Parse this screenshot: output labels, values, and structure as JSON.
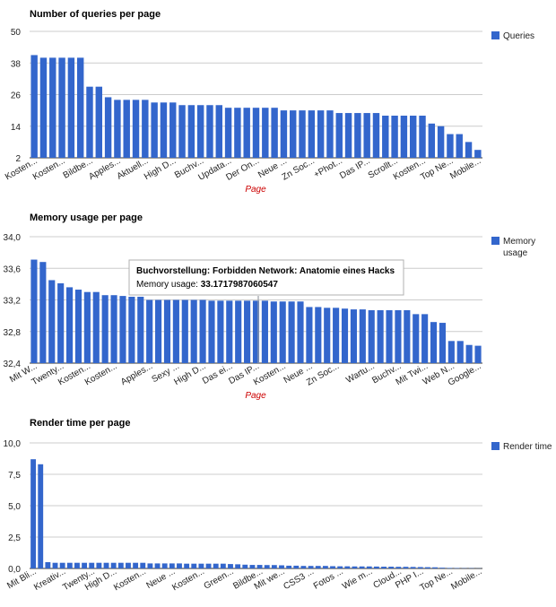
{
  "colors": {
    "bar": "#3366cc",
    "grid": "#cccccc",
    "axis_title": "#cc0000"
  },
  "chart_data": [
    {
      "type": "bar",
      "title": "Number of queries per page",
      "xlabel": "Page",
      "ylabel": "",
      "ylim": [
        2,
        50
      ],
      "yticks": [
        "2",
        "14",
        "26",
        "38",
        "50"
      ],
      "legend": "Queries",
      "legend_position": "right",
      "xticks": [
        "Kosten...",
        "Kosten...",
        "Bildbe...",
        "Apples...",
        "Aktuell...",
        "High D...",
        "Buchv...",
        "Updata...",
        "Der On...",
        "Neue ...",
        "Zn Soc...",
        "+Phot...",
        "Das IP...",
        "Scrollt...",
        "Kosten...",
        "Top Ne...",
        "Mobile..."
      ],
      "values": [
        41,
        40,
        40,
        40,
        40,
        40,
        29,
        29,
        25,
        24,
        24,
        24,
        24,
        23,
        23,
        23,
        22,
        22,
        22,
        22,
        22,
        21,
        21,
        21,
        21,
        21,
        21,
        20,
        20,
        20,
        20,
        20,
        20,
        19,
        19,
        19,
        19,
        19,
        18,
        18,
        18,
        18,
        18,
        15,
        14,
        11,
        11,
        8,
        5
      ]
    },
    {
      "type": "bar",
      "title": "Memory usage per page",
      "xlabel": "Page",
      "ylabel": "",
      "ylim": [
        32.4,
        34.0
      ],
      "yticks": [
        "32,4",
        "32,8",
        "33,2",
        "33,6",
        "34,0"
      ],
      "legend": "Memory usage",
      "legend_position": "right",
      "xticks": [
        "Mit W...",
        "Twenty...",
        "Kosten...",
        "Kosten...",
        "Apples...",
        "Sexy ...",
        "High D...",
        "Das ei...",
        "Das IP...",
        "Kosten...",
        "Neue ...",
        "Zn Soc...",
        "Wartu...",
        "Buchv...",
        "Mit Twi...",
        "Web N...",
        "Google..."
      ],
      "values": [
        33.71,
        33.68,
        33.45,
        33.41,
        33.36,
        33.33,
        33.3,
        33.3,
        33.26,
        33.26,
        33.25,
        33.24,
        33.24,
        33.2,
        33.2,
        33.2,
        33.2,
        33.2,
        33.2,
        33.2,
        33.19,
        33.19,
        33.19,
        33.19,
        33.19,
        33.19,
        33.19,
        33.18,
        33.18,
        33.18,
        33.18,
        33.11,
        33.11,
        33.1,
        33.1,
        33.09,
        33.08,
        33.08,
        33.07,
        33.07,
        33.07,
        33.07,
        33.07,
        33.02,
        33.02,
        32.92,
        32.91,
        32.68,
        32.68,
        32.63,
        32.62
      ],
      "tooltip": {
        "title": "Buchvorstellung: Forbidden Network: Anatomie eines Hacks",
        "label": "Memory usage: ",
        "value": "33.1717987060547"
      }
    },
    {
      "type": "bar",
      "title": "Render time per page",
      "xlabel": "",
      "ylabel": "",
      "ylim": [
        0,
        10
      ],
      "yticks": [
        "0,0",
        "2,5",
        "5,0",
        "7,5",
        "10,0"
      ],
      "legend": "Render time",
      "legend_position": "right",
      "xticks": [
        "Mit Bli...",
        "Kreativ...",
        "Twenty...",
        "High D...",
        "Kosten...",
        "Neue ...",
        "Kosten...",
        "Green...",
        "Bildbe...",
        "Mit we...",
        "CSS3 ...",
        "Fotos ...",
        "Wie m...",
        "Cloud...",
        "PHP I...",
        "Top Ne...",
        "Mobile..."
      ],
      "values": [
        8.7,
        8.3,
        0.5,
        0.45,
        0.45,
        0.45,
        0.45,
        0.45,
        0.45,
        0.45,
        0.45,
        0.45,
        0.45,
        0.45,
        0.45,
        0.45,
        0.4,
        0.4,
        0.4,
        0.4,
        0.4,
        0.38,
        0.38,
        0.38,
        0.38,
        0.38,
        0.38,
        0.35,
        0.33,
        0.3,
        0.28,
        0.28,
        0.27,
        0.27,
        0.25,
        0.22,
        0.22,
        0.2,
        0.2,
        0.2,
        0.2,
        0.18,
        0.17,
        0.17,
        0.16,
        0.16,
        0.16,
        0.15,
        0.14,
        0.14,
        0.13,
        0.13,
        0.12,
        0.11,
        0.1,
        0.09,
        0.06,
        0.04,
        0.03,
        0.02,
        0.02,
        0.01
      ]
    }
  ]
}
